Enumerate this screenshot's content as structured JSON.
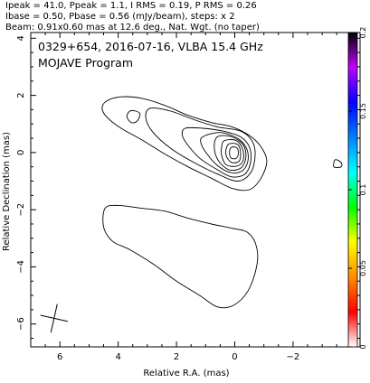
{
  "header": {
    "line1": "Ipeak = 41.0, Ppeak = 1.1, I RMS = 0.19, P RMS = 0.26",
    "line2": "Ibase = 0.50, Pbase = 0.56 (mJy/beam), steps: x 2",
    "line3": "Beam: 0.91x0.60 mas at 12.6 deg., Nat. Wgt. (no taper)"
  },
  "chart_data": {
    "type": "contour",
    "title": "0329+654, 2016-07-16, VLBA 15.4 GHz",
    "subtitle": "MOJAVE Program",
    "xlabel": "Relative R.A. (mas)",
    "ylabel": "Relative Declination (mas)",
    "x_range": [
      7.0,
      -4.3
    ],
    "y_range": [
      -6.8,
      4.2
    ],
    "x_reversed": true,
    "x_ticks": [
      6,
      4,
      2,
      0,
      -2
    ],
    "y_ticks": [
      4,
      2,
      0,
      -2,
      -4,
      -6
    ],
    "x_tick_labels": [
      "6",
      "4",
      "2",
      "0",
      "−2"
    ],
    "y_tick_labels": [
      "4",
      "2",
      "0",
      "−2",
      "−4",
      "−6"
    ],
    "peak_intensity_mjy_per_beam": 41.0,
    "base_contour_mjy_per_beam": 0.5,
    "contour_step_factor": 2,
    "beam": {
      "major_mas": 0.91,
      "minor_mas": 0.6,
      "pa_deg": 12.6,
      "center": [
        6.2,
        -5.8
      ]
    },
    "core": {
      "x": 0.0,
      "y": 0.0
    },
    "contours": [
      {
        "level": 1,
        "points": [
          [
            4.4,
            1.8
          ],
          [
            3.9,
            1.95
          ],
          [
            3.2,
            1.9
          ],
          [
            2.4,
            1.65
          ],
          [
            1.6,
            1.3
          ],
          [
            0.8,
            1.05
          ],
          [
            0.1,
            0.9
          ],
          [
            -0.5,
            0.6
          ],
          [
            -0.9,
            0.2
          ],
          [
            -1.1,
            -0.3
          ],
          [
            -0.9,
            -0.9
          ],
          [
            -0.5,
            -1.3
          ],
          [
            0.1,
            -1.25
          ],
          [
            0.8,
            -0.9
          ],
          [
            1.6,
            -0.5
          ],
          [
            2.4,
            -0.05
          ],
          [
            3.2,
            0.45
          ],
          [
            3.9,
            0.85
          ],
          [
            4.4,
            1.25
          ],
          [
            4.55,
            1.55
          ]
        ]
      },
      {
        "level": 2,
        "points": [
          [
            2.9,
            1.55
          ],
          [
            2.2,
            1.45
          ],
          [
            1.4,
            1.15
          ],
          [
            0.6,
            0.9
          ],
          [
            -0.2,
            0.75
          ],
          [
            -0.6,
            0.4
          ],
          [
            -0.7,
            -0.1
          ],
          [
            -0.55,
            -0.7
          ],
          [
            -0.1,
            -1.0
          ],
          [
            0.6,
            -0.75
          ],
          [
            1.4,
            -0.35
          ],
          [
            2.2,
            0.15
          ],
          [
            2.8,
            0.7
          ],
          [
            3.05,
            1.2
          ]
        ]
      },
      {
        "level": 3,
        "points": [
          [
            1.7,
            0.85
          ],
          [
            1.1,
            0.85
          ],
          [
            0.4,
            0.75
          ],
          [
            -0.2,
            0.55
          ],
          [
            -0.5,
            0.2
          ],
          [
            -0.55,
            -0.3
          ],
          [
            -0.35,
            -0.75
          ],
          [
            0.1,
            -0.85
          ],
          [
            0.6,
            -0.6
          ],
          [
            1.2,
            -0.2
          ],
          [
            1.6,
            0.25
          ],
          [
            1.8,
            0.6
          ]
        ]
      },
      {
        "level": 4,
        "points": [
          [
            1.1,
            0.55
          ],
          [
            0.5,
            0.7
          ],
          [
            -0.1,
            0.5
          ],
          [
            -0.4,
            0.15
          ],
          [
            -0.45,
            -0.3
          ],
          [
            -0.25,
            -0.65
          ],
          [
            0.15,
            -0.7
          ],
          [
            0.6,
            -0.45
          ],
          [
            0.95,
            -0.05
          ],
          [
            1.15,
            0.3
          ]
        ]
      },
      {
        "level": 5,
        "points": [
          [
            0.6,
            0.55
          ],
          [
            0.1,
            0.55
          ],
          [
            -0.3,
            0.25
          ],
          [
            -0.38,
            -0.2
          ],
          [
            -0.2,
            -0.55
          ],
          [
            0.2,
            -0.6
          ],
          [
            0.55,
            -0.3
          ],
          [
            0.7,
            0.15
          ]
        ]
      },
      {
        "level": 6,
        "points": [
          [
            0.35,
            0.42
          ],
          [
            -0.05,
            0.42
          ],
          [
            -0.28,
            0.1
          ],
          [
            -0.28,
            -0.3
          ],
          [
            -0.05,
            -0.48
          ],
          [
            0.3,
            -0.42
          ],
          [
            0.45,
            -0.1
          ],
          [
            0.45,
            0.2
          ]
        ]
      },
      {
        "level": 7,
        "points": [
          [
            0.2,
            0.3
          ],
          [
            -0.1,
            0.28
          ],
          [
            -0.2,
            0.0
          ],
          [
            -0.15,
            -0.3
          ],
          [
            0.1,
            -0.35
          ],
          [
            0.28,
            -0.15
          ],
          [
            0.3,
            0.1
          ]
        ]
      },
      {
        "level": 8,
        "points": [
          [
            0.12,
            0.18
          ],
          [
            -0.08,
            0.16
          ],
          [
            -0.12,
            -0.05
          ],
          [
            -0.05,
            -0.2
          ],
          [
            0.12,
            -0.2
          ],
          [
            0.18,
            -0.02
          ]
        ]
      },
      {
        "level": 1,
        "points": [
          [
            3.4,
            1.45
          ],
          [
            3.25,
            1.35
          ],
          [
            3.35,
            1.1
          ],
          [
            3.55,
            1.05
          ],
          [
            3.7,
            1.25
          ],
          [
            3.6,
            1.45
          ]
        ]
      },
      {
        "level": 1,
        "points": [
          [
            4.45,
            -1.95
          ],
          [
            4.0,
            -1.85
          ],
          [
            3.2,
            -1.95
          ],
          [
            2.4,
            -2.05
          ],
          [
            1.6,
            -2.3
          ],
          [
            0.8,
            -2.5
          ],
          [
            0.1,
            -2.65
          ],
          [
            -0.45,
            -2.8
          ],
          [
            -0.75,
            -3.3
          ],
          [
            -0.75,
            -4.0
          ],
          [
            -0.45,
            -4.85
          ],
          [
            0.05,
            -5.35
          ],
          [
            0.6,
            -5.4
          ],
          [
            1.2,
            -5.0
          ],
          [
            2.0,
            -4.5
          ],
          [
            2.8,
            -3.9
          ],
          [
            3.6,
            -3.4
          ],
          [
            4.2,
            -3.1
          ],
          [
            4.5,
            -2.6
          ]
        ]
      },
      {
        "level": 1,
        "points": [
          [
            -3.45,
            -0.25
          ],
          [
            -3.65,
            -0.35
          ],
          [
            -3.65,
            -0.5
          ],
          [
            -3.4,
            -0.5
          ]
        ]
      }
    ]
  },
  "colorbar": {
    "ticks": [
      0.2,
      0.15,
      0.1,
      0.05,
      0
    ],
    "tick_labels": [
      "0.2",
      "0.15",
      "0.1",
      "0.05",
      "0"
    ],
    "range": [
      0,
      0.2
    ],
    "colors": [
      "#ffffff",
      "#ff0000",
      "#ff8c00",
      "#ffff00",
      "#00ff00",
      "#00ffff",
      "#0080ff",
      "#0000ff",
      "#c000ff",
      "#000000"
    ]
  }
}
